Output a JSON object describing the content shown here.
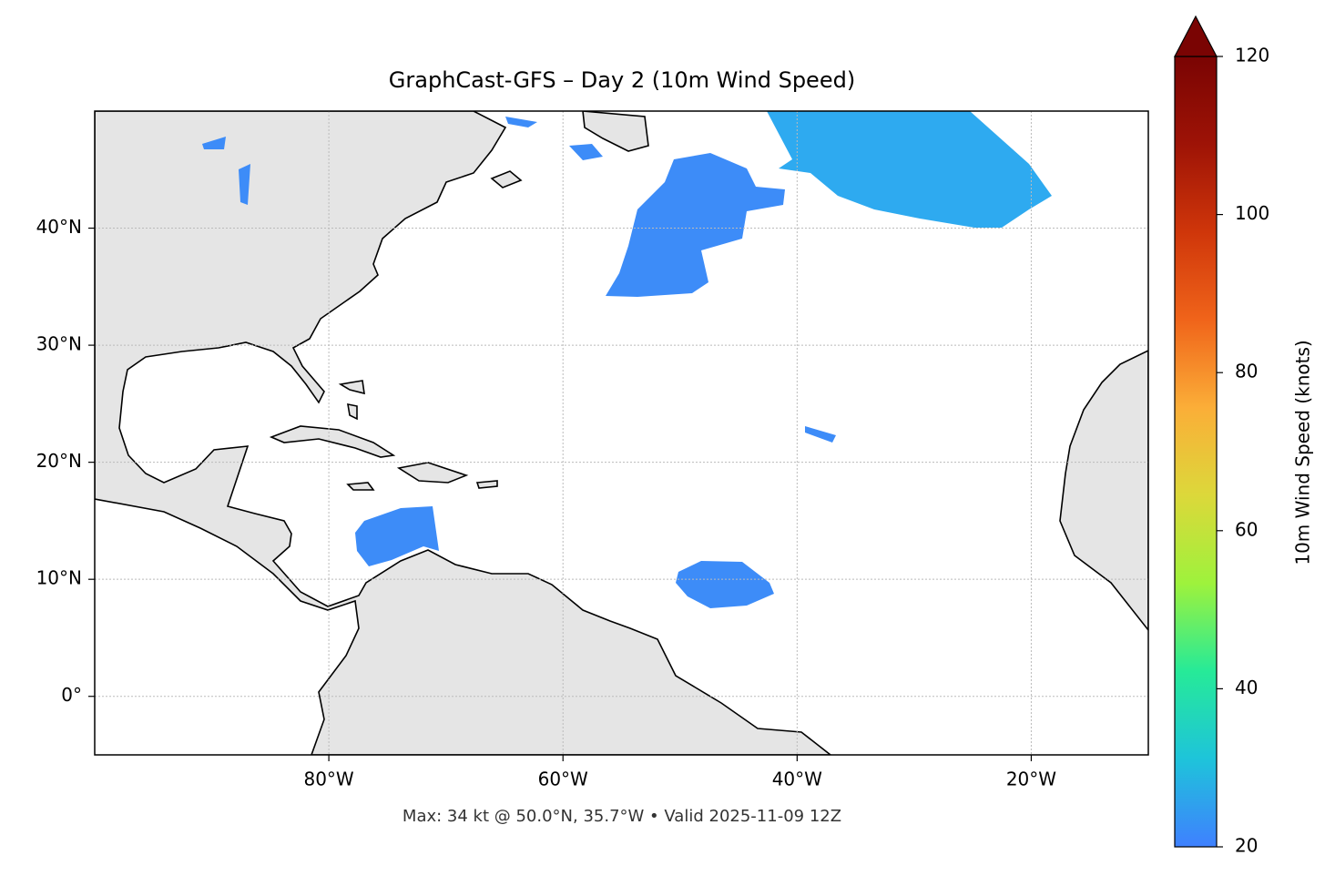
{
  "chart_data": {
    "type": "map",
    "title": "GraphCast-GFS – Day 2 (10m Wind Speed)",
    "footer": "Max: 34 kt @ 50.0°N, 35.7°W • Valid 2025-11-09 12Z",
    "xlim": [
      -100,
      -10
    ],
    "ylim": [
      -5,
      50
    ],
    "xticks": [
      {
        "value": -80,
        "label": "80°W"
      },
      {
        "value": -60,
        "label": "60°W"
      },
      {
        "value": -40,
        "label": "40°W"
      },
      {
        "value": -20,
        "label": "20°W"
      }
    ],
    "yticks": [
      {
        "value": 0,
        "label": "0°"
      },
      {
        "value": 10,
        "label": "10°N"
      },
      {
        "value": 20,
        "label": "20°N"
      },
      {
        "value": 30,
        "label": "30°N"
      },
      {
        "value": 40,
        "label": "40°N"
      }
    ],
    "grid": true,
    "colorbar": {
      "label": "10m Wind Speed (knots)",
      "lim": [
        20,
        120
      ],
      "ticks": [
        20,
        40,
        60,
        80,
        100,
        120
      ],
      "extend": "max",
      "colors": [
        "#3f80ff",
        "#1ec4da",
        "#26ea98",
        "#9ef23c",
        "#dcd83a",
        "#fbae38",
        "#f0641a",
        "#cf360a",
        "#9e1306",
        "#7a0403"
      ]
    }
  }
}
